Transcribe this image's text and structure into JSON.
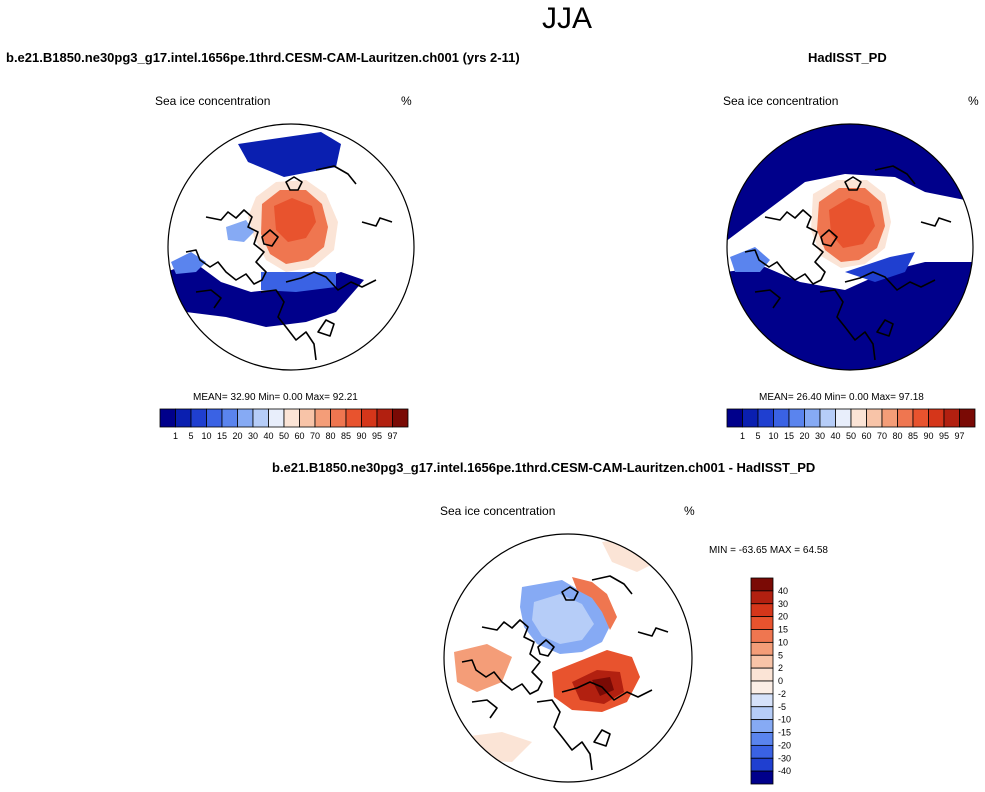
{
  "main_title": "JJA",
  "panels": [
    {
      "title": "b.e21.B1850.ne30pg3_g17.intel.1656pe.1thrd.CESM-CAM-Lauritzen.ch001 (yrs 2-11)",
      "variable": "Sea ice concentration",
      "units": "%",
      "stats": "MEAN=  32.90  Min=   0.00  Max=  92.21"
    },
    {
      "title": "HadISST_PD",
      "variable": "Sea ice concentration",
      "units": "%",
      "stats": "MEAN=  26.40  Min=   0.00  Max=  97.18"
    },
    {
      "title": "b.e21.B1850.ne30pg3_g17.intel.1656pe.1thrd.CESM-CAM-Lauritzen.ch001 - HadISST_PD",
      "variable": "Sea ice concentration",
      "units": "%",
      "stats": "MIN = -63.65 MAX =  64.58"
    }
  ],
  "chart_data": [
    {
      "type": "heatmap",
      "projection": "north polar stereographic",
      "title": "b.e21.B1850.ne30pg3_g17.intel.1656pe.1thrd.CESM-CAM-Lauritzen.ch001 (yrs 2-11)",
      "variable": "Sea ice concentration",
      "units": "%",
      "mean": 32.9,
      "min": 0.0,
      "max": 92.21,
      "colorbar": {
        "orientation": "horizontal",
        "levels": [
          "1",
          "5",
          "10",
          "15",
          "20",
          "30",
          "40",
          "50",
          "60",
          "70",
          "80",
          "85",
          "90",
          "95",
          "97"
        ],
        "colors": [
          "#00008b",
          "#0a1fb0",
          "#1f3fd0",
          "#3a62e4",
          "#5a84ee",
          "#86aaf4",
          "#b6cdf8",
          "#e8eefb",
          "#fbe4d6",
          "#f8c4a8",
          "#f49d78",
          "#ef7650",
          "#e8532e",
          "#d5361a",
          "#b22010",
          "#7a0a05"
        ]
      }
    },
    {
      "type": "heatmap",
      "projection": "north polar stereographic",
      "title": "HadISST_PD",
      "variable": "Sea ice concentration",
      "units": "%",
      "mean": 26.4,
      "min": 0.0,
      "max": 97.18,
      "colorbar": {
        "orientation": "horizontal",
        "levels": [
          "1",
          "5",
          "10",
          "15",
          "20",
          "30",
          "40",
          "50",
          "60",
          "70",
          "80",
          "85",
          "90",
          "95",
          "97"
        ],
        "colors": [
          "#00008b",
          "#0a1fb0",
          "#1f3fd0",
          "#3a62e4",
          "#5a84ee",
          "#86aaf4",
          "#b6cdf8",
          "#e8eefb",
          "#fbe4d6",
          "#f8c4a8",
          "#f49d78",
          "#ef7650",
          "#e8532e",
          "#d5361a",
          "#b22010",
          "#7a0a05"
        ]
      }
    },
    {
      "type": "heatmap",
      "projection": "north polar stereographic",
      "title": "b.e21.B1850.ne30pg3_g17.intel.1656pe.1thrd.CESM-CAM-Lauritzen.ch001 - HadISST_PD",
      "variable": "Sea ice concentration",
      "units": "%",
      "min": -63.65,
      "max": 64.58,
      "colorbar": {
        "orientation": "vertical",
        "levels": [
          "40",
          "30",
          "20",
          "15",
          "10",
          "5",
          "2",
          "0",
          "-2",
          "-5",
          "-10",
          "-15",
          "-20",
          "-30",
          "-40"
        ],
        "colors": [
          "#7a0a05",
          "#b22010",
          "#d5361a",
          "#e8532e",
          "#ef7650",
          "#f49d78",
          "#f8c4a8",
          "#fbe4d6",
          "#fbeee6",
          "#d6e2fa",
          "#b6cdf8",
          "#86aaf4",
          "#5a84ee",
          "#3a62e4",
          "#1f3fd0",
          "#00008b"
        ]
      }
    }
  ]
}
